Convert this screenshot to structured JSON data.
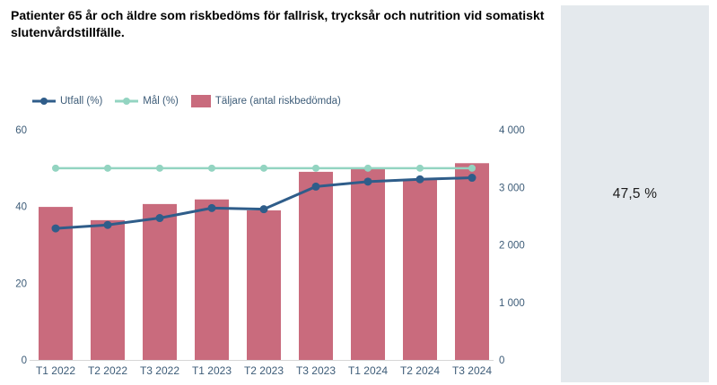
{
  "title": "Patienter 65 år och äldre som riskbedöms för fallrisk, trycksår och nutrition vid somatiskt slutenvårdstillfälle.",
  "kpi": {
    "value": "47,5 %"
  },
  "colors": {
    "outcome_line": "#2f5d8a",
    "target_line": "#93d4c1",
    "bars": "#c96b7d",
    "axis_text": "#3d5c78",
    "axis_line": "#d6d6d6",
    "panel_bg": "#e4e9ed"
  },
  "chart_data": {
    "type": "bar+line combo",
    "title": "Patienter 65 år och äldre som riskbedöms för fallrisk, trycksår och nutrition vid somatiskt slutenvårdstillfälle.",
    "categories": [
      "T1 2022",
      "T2 2022",
      "T3 2022",
      "T1 2023",
      "T2 2023",
      "T3 2023",
      "T1 2024",
      "T2 2024",
      "T3 2024"
    ],
    "series": [
      {
        "name": "Utfall (%)",
        "type": "line",
        "axis": "left",
        "color": "#2f5d8a",
        "values": [
          34.3,
          35.2,
          37.0,
          39.6,
          39.3,
          45.2,
          46.5,
          47.1,
          47.5
        ]
      },
      {
        "name": "Mål (%)",
        "type": "line",
        "axis": "left",
        "color": "#93d4c1",
        "values": [
          50,
          50,
          50,
          50,
          50,
          50,
          50,
          50,
          50
        ]
      },
      {
        "name": "Täljare (antal riskbedömda)",
        "type": "bar",
        "axis": "right",
        "color": "#c96b7d",
        "values": [
          2660,
          2430,
          2710,
          2790,
          2600,
          3270,
          3330,
          3140,
          3420
        ]
      }
    ],
    "left_axis": {
      "min": 0,
      "max": 60,
      "tick_values": [
        0,
        20,
        40,
        60
      ],
      "tick_labels": [
        "0",
        "20",
        "40",
        "60"
      ]
    },
    "right_axis": {
      "min": 0,
      "max": 4000,
      "tick_values": [
        0,
        1000,
        2000,
        3000,
        4000
      ],
      "tick_labels": [
        "0",
        "1 000",
        "2 000",
        "3 000",
        "4 000"
      ]
    },
    "grid": "off",
    "legend_position": "top-left"
  }
}
